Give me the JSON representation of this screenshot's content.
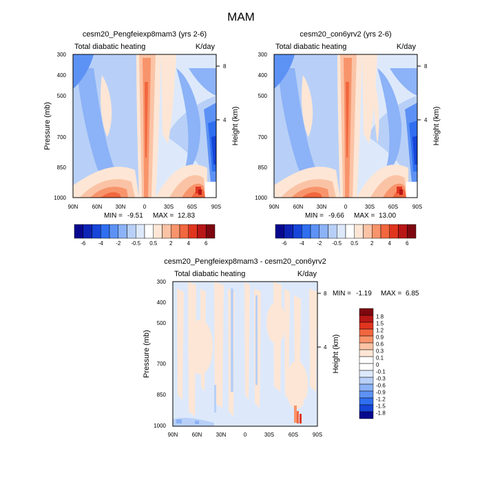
{
  "figure": {
    "title": "MAM"
  },
  "chart_data": [
    {
      "type": "heatmap",
      "title": "cesm20_Pengfeiexp8mam3 (yrs 2-6)",
      "left_label": "Total diabatic heating",
      "right_label": "K/day",
      "xlabel": "",
      "ylabel": "Pressure (mb)",
      "ylabel_right": "Height (km)",
      "x_ticks": [
        "90N",
        "60N",
        "30N",
        "0",
        "30S",
        "60S",
        "90S"
      ],
      "x_range": [
        90,
        -90
      ],
      "y_ticks": [
        300,
        400,
        500,
        700,
        850,
        1000
      ],
      "y_range": [
        300,
        1000
      ],
      "y_scale": "log",
      "right_ticks": [
        "8",
        "4"
      ],
      "stats": {
        "min_label": "MIN =",
        "min": "-9.51",
        "max_label": "MAX =",
        "max": "12.83"
      },
      "colorbar": {
        "orientation": "horizontal",
        "labels": [
          "-6",
          "-4",
          "-2",
          "-0.5",
          "0.5",
          "2",
          "4",
          "6"
        ],
        "colors": [
          "#08088e",
          "#0d23b5",
          "#1645d9",
          "#2f6ff0",
          "#5d92f5",
          "#8cb2f7",
          "#b8d0f7",
          "#dde9fb",
          "#ffffff",
          "#fde6d5",
          "#fbc3a5",
          "#f8946b",
          "#f1673f",
          "#e0351f",
          "#b81716",
          "#7e0710"
        ]
      }
    },
    {
      "type": "heatmap",
      "title": "cesm20_con6yrv2 (yrs 2-6)",
      "left_label": "Total diabatic heating",
      "right_label": "K/day",
      "xlabel": "",
      "ylabel": "Pressure (mb)",
      "ylabel_right": "Height (km)",
      "x_ticks": [
        "90N",
        "60N",
        "30N",
        "0",
        "30S",
        "60S",
        "90S"
      ],
      "x_range": [
        90,
        -90
      ],
      "y_ticks": [
        300,
        400,
        500,
        700,
        850,
        1000
      ],
      "y_range": [
        300,
        1000
      ],
      "y_scale": "log",
      "right_ticks": [
        "8",
        "4"
      ],
      "stats": {
        "min_label": "MIN =",
        "min": "-9.66",
        "max_label": "MAX =",
        "max": "13.00"
      },
      "colorbar": {
        "orientation": "horizontal",
        "labels": [
          "-6",
          "-4",
          "-2",
          "-0.5",
          "0.5",
          "2",
          "4",
          "6"
        ],
        "colors": [
          "#08088e",
          "#0d23b5",
          "#1645d9",
          "#2f6ff0",
          "#5d92f5",
          "#8cb2f7",
          "#b8d0f7",
          "#dde9fb",
          "#ffffff",
          "#fde6d5",
          "#fbc3a5",
          "#f8946b",
          "#f1673f",
          "#e0351f",
          "#b81716",
          "#7e0710"
        ]
      }
    },
    {
      "type": "heatmap",
      "title": "cesm20_Pengfeiexp8mam3 - cesm20_con6yrv2",
      "left_label": "Total diabatic heating",
      "right_label": "K/day",
      "xlabel": "",
      "ylabel": "Pressure (mb)",
      "ylabel_right": "Height (km)",
      "x_ticks": [
        "90N",
        "60N",
        "30N",
        "0",
        "30S",
        "60S",
        "90S"
      ],
      "x_range": [
        90,
        -90
      ],
      "y_ticks": [
        300,
        400,
        500,
        700,
        850,
        1000
      ],
      "y_range": [
        300,
        1000
      ],
      "y_scale": "log",
      "right_ticks": [
        "8",
        "4"
      ],
      "stats": {
        "min_label": "MIN =",
        "min": "-1.19",
        "max_label": "MAX =",
        "max": "6.85"
      },
      "colorbar": {
        "orientation": "vertical",
        "labels": [
          "1.8",
          "1.5",
          "1.2",
          "0.9",
          "0.6",
          "0.3",
          "0.1",
          "0",
          "-0.1",
          "-0.3",
          "-0.6",
          "-0.9",
          "-1.2",
          "-1.5",
          "-1.8"
        ],
        "colors": [
          "#7e0710",
          "#b81716",
          "#e0351f",
          "#f1673f",
          "#f8946b",
          "#fbc3a5",
          "#fde6d5",
          "#ffffff",
          "#ffffff",
          "#dde9fb",
          "#b8d0f7",
          "#8cb2f7",
          "#5d92f5",
          "#2f6ff0",
          "#1645d9",
          "#08088e"
        ]
      }
    }
  ]
}
